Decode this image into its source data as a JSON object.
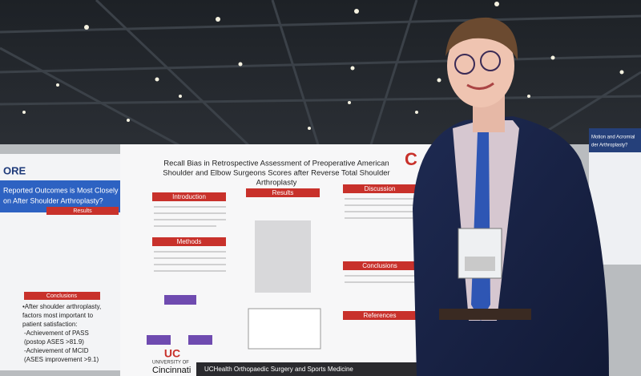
{
  "center_poster": {
    "title_lines": [
      "Recall Bias in Retrospective Assessment of Preoperative American",
      "Shoulder and Elbow Surgeons Scores after Reverse Total Shoulder",
      "Arthroplasty"
    ],
    "sections": [
      "Introduction",
      "Results",
      "Methods",
      "Discussion",
      "Conclusions",
      "References"
    ],
    "logo": "UC",
    "university": "UNIVERSITY OF",
    "university_name": "Cincinnati",
    "footer": "UCHealth Orthopaedic Surgery and Sports Medicine"
  },
  "left_poster": {
    "logo": "ORE",
    "title_lines": [
      "Reported Outcomes is Most Closely",
      "on After Shoulder Arthroplasty?"
    ],
    "results_header": "Results",
    "conclusions_header": "Conclusions",
    "conclusions": [
      "•After shoulder arthroplasty,",
      "factors most important to",
      "patient satisfaction:",
      "-Achievement of PASS",
      "(postop ASES >81.9)",
      "-Achievement of MCID",
      "(ASES improvement >9.1)"
    ]
  },
  "right_poster": {
    "title_lines": [
      "Motion and Acromial",
      "der Arthroplasty?"
    ]
  }
}
